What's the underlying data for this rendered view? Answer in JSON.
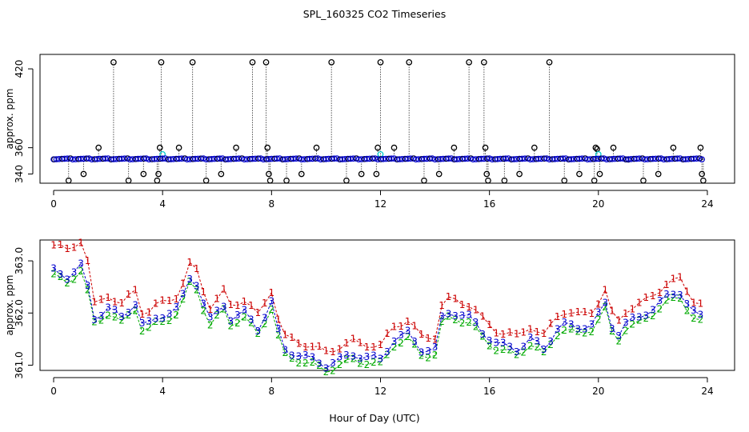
{
  "title": "SPL_160325  CO2 Timeseries",
  "xlabel": "Hour of Day (UTC)",
  "colors": {
    "black": "#000000",
    "blue": "#0000cc",
    "cyan": "#00cccc",
    "green": "#00aa00",
    "red": "#cc0000",
    "axis": "#000000"
  },
  "chart_data": [
    {
      "type": "scatter",
      "ylabel": "approx. ppm",
      "xlim": [
        -0.5,
        25.0
      ],
      "ylim": [
        333.0,
        431.0
      ],
      "x_ticks": [
        0,
        4,
        8,
        12,
        16,
        20,
        24
      ],
      "x_tick_labels": [
        "0",
        "4",
        "8",
        "12",
        "16",
        "20",
        "24"
      ],
      "y_ticks": [
        340,
        360,
        420
      ],
      "y_tick_labels": [
        "340",
        "360",
        "420"
      ],
      "baseline": {
        "x_start": 0.0,
        "x_end": 23.9,
        "value": 351.5
      },
      "spikes": [
        {
          "x": 0.55,
          "y": 335
        },
        {
          "x": 1.1,
          "y": 340
        },
        {
          "x": 1.65,
          "y": 360
        },
        {
          "x": 2.2,
          "y": 425
        },
        {
          "x": 2.75,
          "y": 335
        },
        {
          "x": 3.3,
          "y": 340
        },
        {
          "x": 3.8,
          "y": 335
        },
        {
          "x": 3.85,
          "y": 340
        },
        {
          "x": 3.9,
          "y": 360
        },
        {
          "x": 3.95,
          "y": 425
        },
        {
          "x": 4.6,
          "y": 360
        },
        {
          "x": 5.1,
          "y": 425
        },
        {
          "x": 5.6,
          "y": 335
        },
        {
          "x": 6.15,
          "y": 340
        },
        {
          "x": 6.7,
          "y": 360
        },
        {
          "x": 7.3,
          "y": 425
        },
        {
          "x": 7.8,
          "y": 425
        },
        {
          "x": 7.85,
          "y": 360
        },
        {
          "x": 7.9,
          "y": 340
        },
        {
          "x": 7.95,
          "y": 335
        },
        {
          "x": 8.55,
          "y": 335
        },
        {
          "x": 9.1,
          "y": 340
        },
        {
          "x": 9.65,
          "y": 360
        },
        {
          "x": 10.2,
          "y": 425
        },
        {
          "x": 10.75,
          "y": 335
        },
        {
          "x": 11.3,
          "y": 340
        },
        {
          "x": 11.85,
          "y": 340
        },
        {
          "x": 11.9,
          "y": 360
        },
        {
          "x": 12.0,
          "y": 425
        },
        {
          "x": 12.5,
          "y": 360
        },
        {
          "x": 13.05,
          "y": 425
        },
        {
          "x": 13.6,
          "y": 335
        },
        {
          "x": 14.15,
          "y": 340
        },
        {
          "x": 14.7,
          "y": 360
        },
        {
          "x": 15.25,
          "y": 425
        },
        {
          "x": 15.8,
          "y": 425
        },
        {
          "x": 15.85,
          "y": 360
        },
        {
          "x": 15.9,
          "y": 340
        },
        {
          "x": 15.95,
          "y": 335
        },
        {
          "x": 16.55,
          "y": 335
        },
        {
          "x": 17.1,
          "y": 340
        },
        {
          "x": 17.65,
          "y": 360
        },
        {
          "x": 18.2,
          "y": 425
        },
        {
          "x": 18.75,
          "y": 335
        },
        {
          "x": 19.3,
          "y": 340
        },
        {
          "x": 19.85,
          "y": 335
        },
        {
          "x": 19.9,
          "y": 360
        },
        {
          "x": 19.95,
          "y": 359
        },
        {
          "x": 20.05,
          "y": 340
        },
        {
          "x": 20.55,
          "y": 360
        },
        {
          "x": 21.1,
          "y": 351
        },
        {
          "x": 21.65,
          "y": 335
        },
        {
          "x": 22.2,
          "y": 340
        },
        {
          "x": 22.75,
          "y": 360
        },
        {
          "x": 23.75,
          "y": 360
        },
        {
          "x": 23.8,
          "y": 340
        },
        {
          "x": 23.85,
          "y": 335
        }
      ],
      "cyan_points": [
        {
          "x": 4.0,
          "y": 355
        },
        {
          "x": 12.0,
          "y": 355
        },
        {
          "x": 20.0,
          "y": 355
        }
      ]
    },
    {
      "type": "line",
      "ylabel": "approx. ppm",
      "xlim": [
        -0.5,
        25.0
      ],
      "ylim": [
        360.9,
        363.4
      ],
      "x_ticks": [
        0,
        4,
        8,
        12,
        16,
        20,
        24
      ],
      "x_tick_labels": [
        "0",
        "4",
        "8",
        "12",
        "16",
        "20",
        "24"
      ],
      "y_ticks": [
        361.0,
        362.0,
        363.0
      ],
      "y_tick_labels": [
        "361.0",
        "362.0",
        "363.0"
      ],
      "anchors": [
        [
          0.0,
          362.8
        ],
        [
          0.5,
          362.7
        ],
        [
          1.0,
          362.9
        ],
        [
          1.3,
          362.4
        ],
        [
          1.5,
          361.9
        ],
        [
          2.0,
          362.1
        ],
        [
          2.5,
          361.9
        ],
        [
          3.0,
          362.2
        ],
        [
          3.3,
          361.7
        ],
        [
          3.8,
          361.9
        ],
        [
          4.2,
          362.0
        ],
        [
          4.6,
          362.1
        ],
        [
          5.1,
          362.8
        ],
        [
          5.5,
          362.2
        ],
        [
          5.8,
          361.8
        ],
        [
          6.2,
          362.2
        ],
        [
          6.5,
          361.9
        ],
        [
          7.0,
          362.0
        ],
        [
          7.5,
          361.7
        ],
        [
          8.0,
          362.2
        ],
        [
          8.4,
          361.3
        ],
        [
          9.0,
          361.2
        ],
        [
          10.0,
          361.0
        ],
        [
          11.0,
          361.2
        ],
        [
          12.0,
          361.1
        ],
        [
          12.5,
          361.5
        ],
        [
          13.0,
          361.6
        ],
        [
          13.5,
          361.3
        ],
        [
          14.0,
          361.3
        ],
        [
          14.3,
          362.0
        ],
        [
          14.8,
          362.0
        ],
        [
          15.3,
          361.9
        ],
        [
          15.8,
          361.6
        ],
        [
          16.3,
          361.4
        ],
        [
          17.0,
          361.3
        ],
        [
          17.5,
          361.5
        ],
        [
          18.0,
          361.3
        ],
        [
          18.6,
          361.8
        ],
        [
          19.2,
          361.7
        ],
        [
          19.8,
          361.8
        ],
        [
          20.3,
          362.2
        ],
        [
          20.6,
          361.5
        ],
        [
          21.0,
          361.8
        ],
        [
          21.5,
          361.9
        ],
        [
          22.0,
          362.1
        ],
        [
          22.5,
          362.3
        ],
        [
          23.0,
          362.4
        ],
        [
          23.5,
          362.0
        ],
        [
          23.8,
          361.9
        ]
      ],
      "series": [
        {
          "name": "1",
          "label": "1",
          "offset": 0.25,
          "step_hours": 0.25
        },
        {
          "name": "2",
          "label": "2",
          "offset": -0.1,
          "step_hours": 0.25
        },
        {
          "name": "3",
          "label": "3",
          "offset": 0.0,
          "step_hours": 0.25
        }
      ]
    }
  ]
}
